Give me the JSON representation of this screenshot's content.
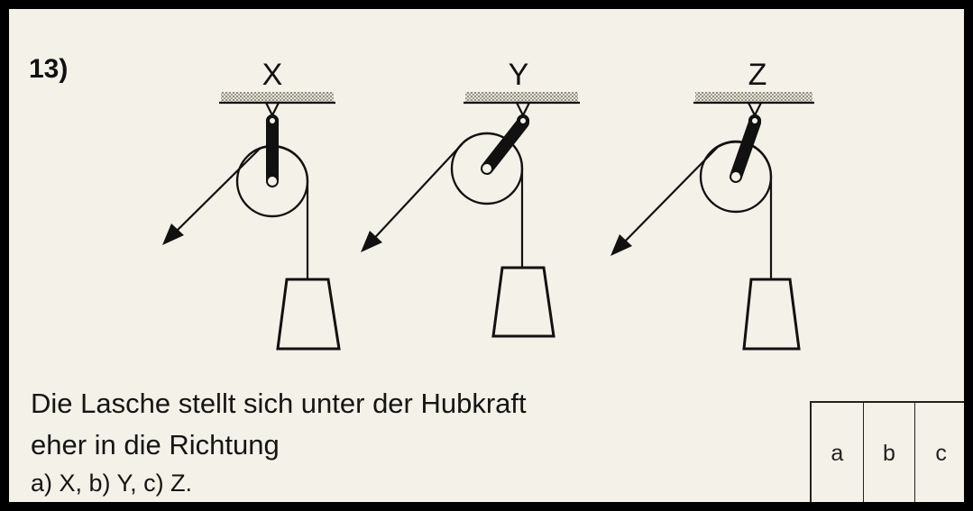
{
  "question": {
    "number": "13)",
    "text_line1": "Die Lasche stellt sich unter der Hubkraft",
    "text_line2": "eher in die Richtung",
    "options_line": "a) X,   b) Y,   c) Z."
  },
  "figures": [
    {
      "label": "X"
    },
    {
      "label": "Y"
    },
    {
      "label": "Z"
    }
  ],
  "answer_boxes": [
    "a",
    "b",
    "c"
  ]
}
